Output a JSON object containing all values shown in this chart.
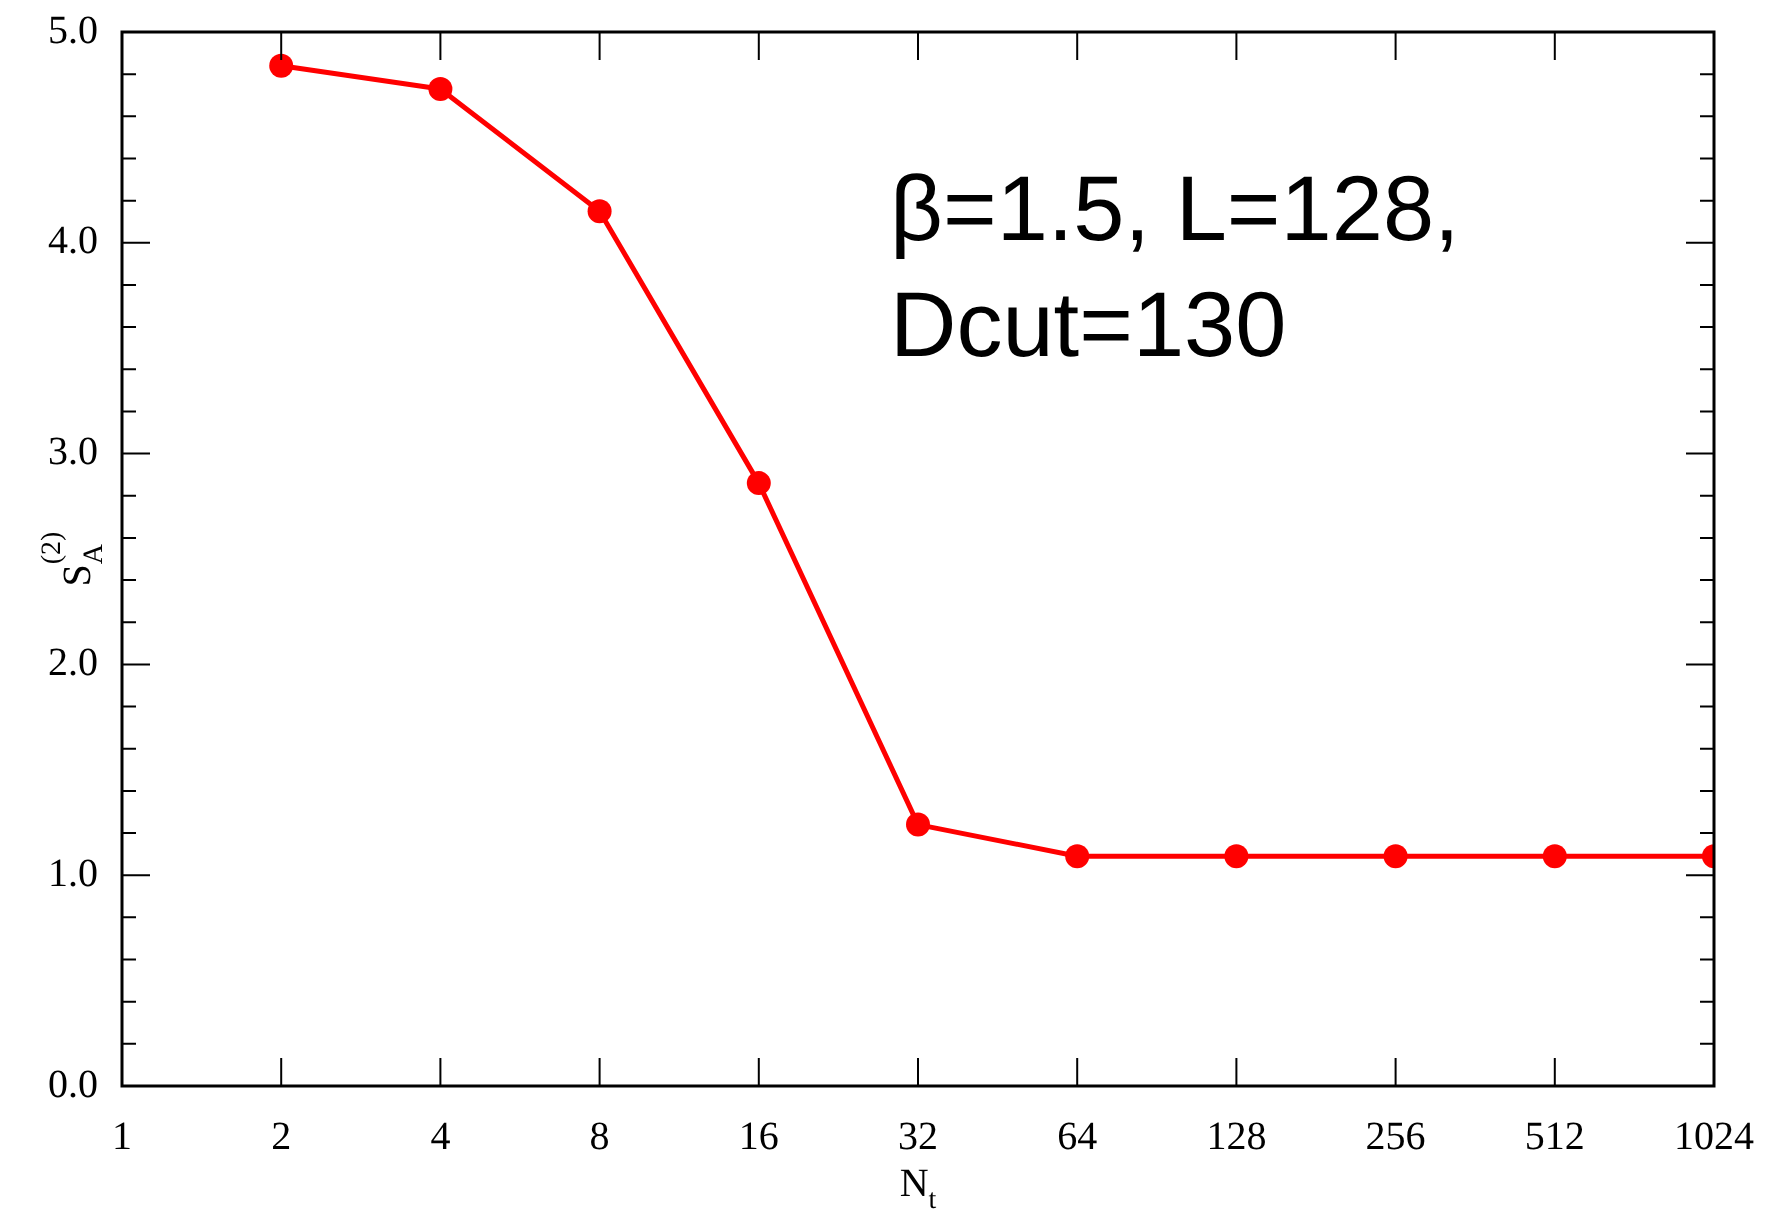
{
  "chart_data": {
    "type": "line",
    "xlabel": "N$_{t}$",
    "ylabel": "S$_{A}$$^{(2)}$",
    "annotations": [
      "β=1.5, L=128,",
      "Dcut=130"
    ],
    "x": [
      2,
      4,
      8,
      16,
      32,
      64,
      128,
      256,
      512,
      1024
    ],
    "series": [
      {
        "color": "#ff0000",
        "values": [
          4.84,
          4.73,
          4.15,
          2.86,
          1.24,
          1.09,
          1.09,
          1.09,
          1.09,
          1.09
        ]
      }
    ],
    "log": "x",
    "marker": "circle",
    "line_style": "solid",
    "xlim": [
      1,
      1024
    ],
    "xticks": [
      1,
      2,
      4,
      8,
      16,
      32,
      64,
      128,
      256,
      512,
      1024
    ],
    "ylim": [
      0,
      5
    ],
    "yticks": [
      {
        "value": 0,
        "label": "0.0"
      },
      {
        "value": 0.2,
        "label": null
      },
      {
        "value": 0.4,
        "label": null
      },
      {
        "value": 0.6,
        "label": null
      },
      {
        "value": 0.8,
        "label": null
      },
      {
        "value": 1,
        "label": "1.0"
      },
      {
        "value": 1.2,
        "label": null
      },
      {
        "value": 1.4,
        "label": null
      },
      {
        "value": 1.6,
        "label": null
      },
      {
        "value": 1.8,
        "label": null
      },
      {
        "value": 2,
        "label": "2.0"
      },
      {
        "value": 2.2,
        "label": null
      },
      {
        "value": 2.4,
        "label": null
      },
      {
        "value": 2.6,
        "label": null
      },
      {
        "value": 2.8,
        "label": null
      },
      {
        "value": 3,
        "label": "3.0"
      },
      {
        "value": 3.2,
        "label": null
      },
      {
        "value": 3.4,
        "label": null
      },
      {
        "value": 3.6,
        "label": null
      },
      {
        "value": 3.8,
        "label": null
      },
      {
        "value": 4,
        "label": "4.0"
      },
      {
        "value": 4.2,
        "label": null
      },
      {
        "value": 4.4,
        "label": null
      },
      {
        "value": 4.6,
        "label": null
      },
      {
        "value": 4.8,
        "label": null
      },
      {
        "value": 5,
        "label": "5.0"
      }
    ]
  }
}
